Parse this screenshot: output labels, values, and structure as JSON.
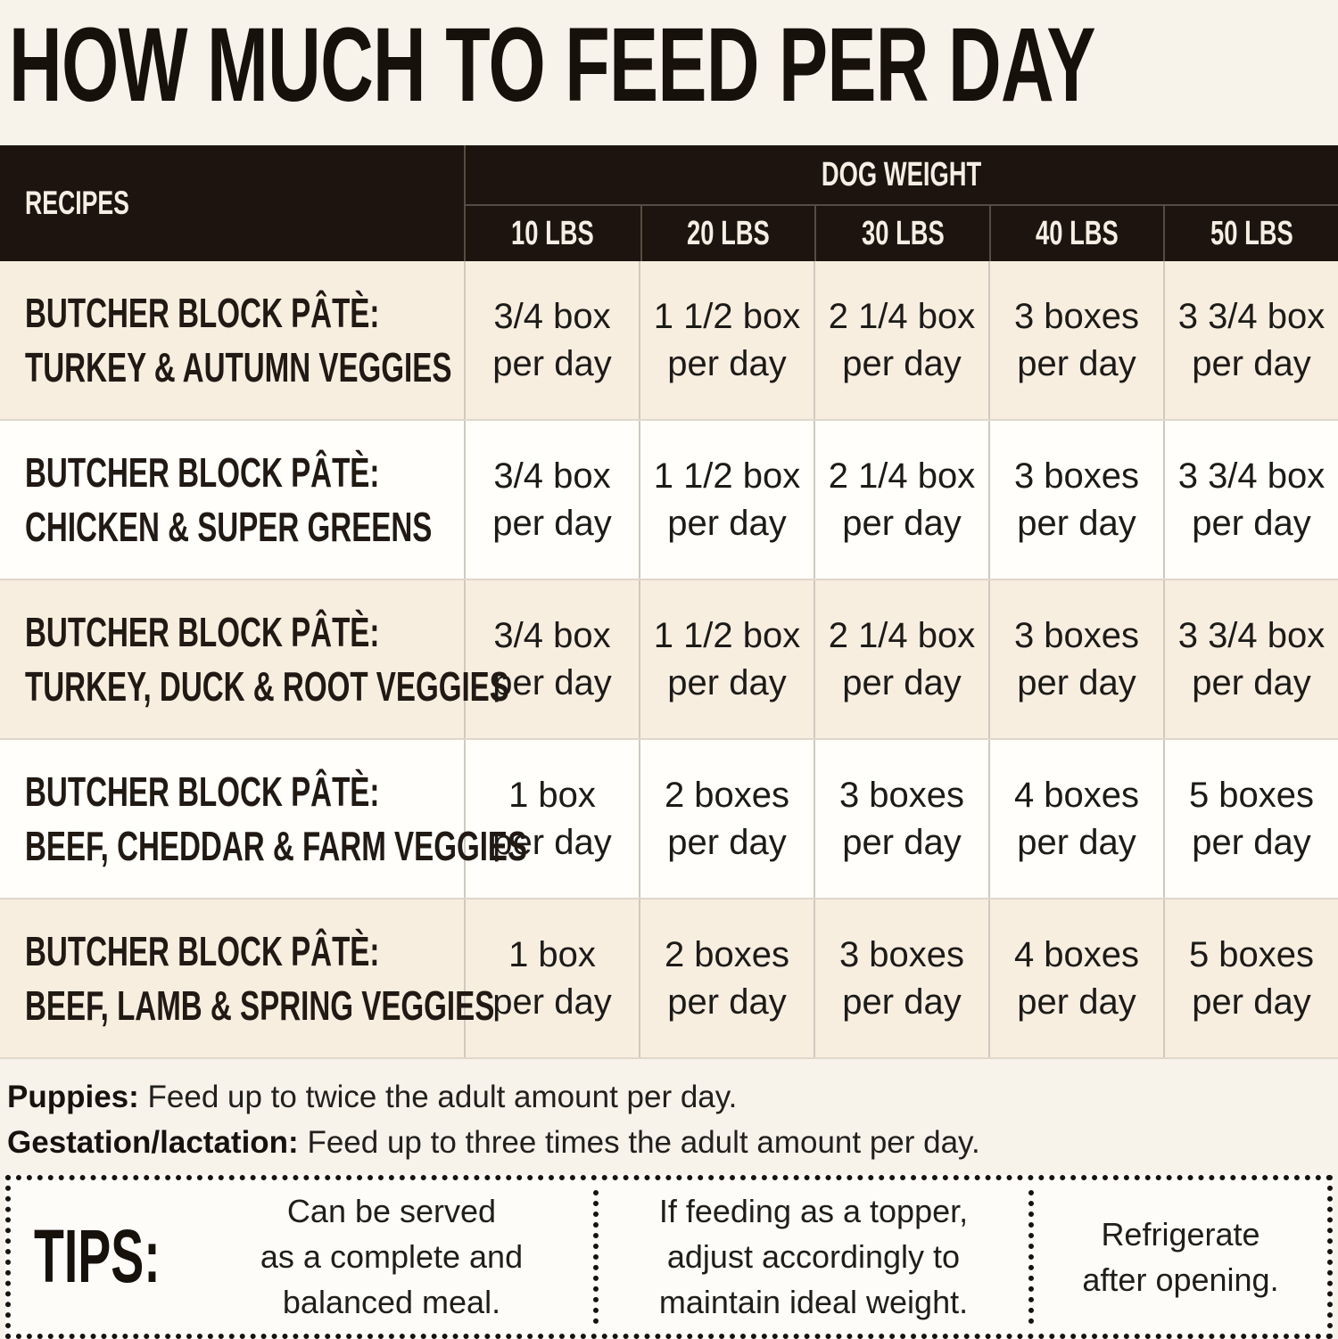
{
  "title": "HOW MUCH TO FEED PER DAY",
  "table": {
    "recipes_header": "RECIPES",
    "group_header": "DOG WEIGHT",
    "weight_headers": [
      "10 LBS",
      "20 LBS",
      "30 LBS",
      "40 LBS",
      "50 LBS"
    ],
    "rows": [
      {
        "name_line1": "BUTCHER BLOCK PÂTÈ:",
        "name_line2": "TURKEY & AUTUMN VEGGIES",
        "cells": [
          {
            "qty": "3/4 box",
            "freq": "per day"
          },
          {
            "qty": "1 1/2 box",
            "freq": "per day"
          },
          {
            "qty": "2 1/4 box",
            "freq": "per day"
          },
          {
            "qty": "3 boxes",
            "freq": "per day"
          },
          {
            "qty": "3 3/4 box",
            "freq": "per day"
          }
        ]
      },
      {
        "name_line1": "BUTCHER BLOCK PÂTÈ:",
        "name_line2": "CHICKEN & SUPER GREENS",
        "cells": [
          {
            "qty": "3/4 box",
            "freq": "per day"
          },
          {
            "qty": "1 1/2 box",
            "freq": "per day"
          },
          {
            "qty": "2 1/4 box",
            "freq": "per day"
          },
          {
            "qty": "3 boxes",
            "freq": "per day"
          },
          {
            "qty": "3 3/4 box",
            "freq": "per day"
          }
        ]
      },
      {
        "name_line1": "BUTCHER BLOCK PÂTÈ:",
        "name_line2": "TURKEY, DUCK & ROOT VEGGIES",
        "cells": [
          {
            "qty": "3/4 box",
            "freq": "per day"
          },
          {
            "qty": "1 1/2 box",
            "freq": "per day"
          },
          {
            "qty": "2 1/4 box",
            "freq": "per day"
          },
          {
            "qty": "3 boxes",
            "freq": "per day"
          },
          {
            "qty": "3 3/4 box",
            "freq": "per day"
          }
        ]
      },
      {
        "name_line1": "BUTCHER BLOCK PÂTÈ:",
        "name_line2": "BEEF, CHEDDAR & FARM VEGGIES",
        "cells": [
          {
            "qty": "1 box",
            "freq": "per day"
          },
          {
            "qty": "2 boxes",
            "freq": "per day"
          },
          {
            "qty": "3 boxes",
            "freq": "per day"
          },
          {
            "qty": "4 boxes",
            "freq": "per day"
          },
          {
            "qty": "5 boxes",
            "freq": "per day"
          }
        ]
      },
      {
        "name_line1": "BUTCHER BLOCK PÂTÈ:",
        "name_line2": "BEEF, LAMB & SPRING VEGGIES",
        "cells": [
          {
            "qty": "1 box",
            "freq": "per day"
          },
          {
            "qty": "2 boxes",
            "freq": "per day"
          },
          {
            "qty": "3 boxes",
            "freq": "per day"
          },
          {
            "qty": "4 boxes",
            "freq": "per day"
          },
          {
            "qty": "5 boxes",
            "freq": "per day"
          }
        ]
      }
    ]
  },
  "notes": [
    {
      "label": "Puppies:",
      "text": " Feed up to twice the adult amount per day."
    },
    {
      "label": "Gestation/lactation:",
      "text": " Feed up to three times the adult amount per day."
    }
  ],
  "tips": {
    "label": "TIPS:",
    "items": [
      [
        "Can be served",
        "as a complete and",
        "balanced meal."
      ],
      [
        "If feeding as a topper,",
        "adjust accordingly to",
        "maintain ideal weight."
      ],
      [
        "Refrigerate",
        "after opening."
      ]
    ]
  },
  "colors": {
    "page_bg": "#f7f2ea",
    "header_bg": "#1d140f",
    "header_text": "#f4eee4",
    "row_cream": "#f8eee0",
    "row_white": "#fffefb",
    "text_dark": "#1d1712"
  }
}
